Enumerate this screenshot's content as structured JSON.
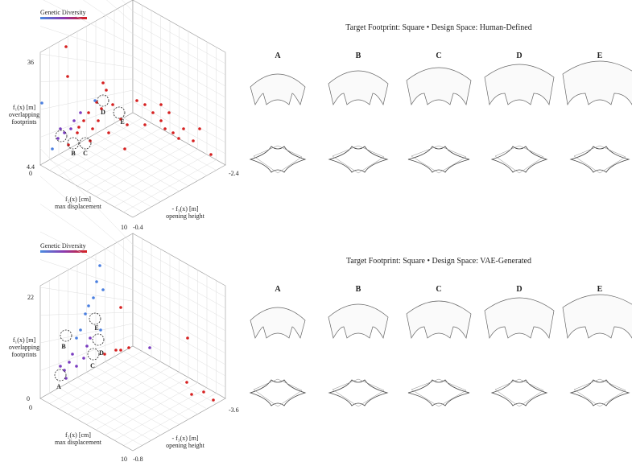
{
  "panels": [
    {
      "legend": "Genetic Diversity",
      "title": "Target Footprint: Square • Design Space: Human-Defined",
      "columns": [
        "A",
        "B",
        "C",
        "D",
        "E"
      ],
      "axes": {
        "f1": [
          "f₁(x) [m]",
          "overlapping",
          "footprints"
        ],
        "f2": [
          "f₂(x) [cm]",
          "max displacement"
        ],
        "f3": [
          "- f₃(x) [m]",
          "opening height"
        ]
      },
      "ticks": {
        "f1_max": "36",
        "f1_min": "4.4",
        "f2_min": "0",
        "f2_max": "10",
        "f3_min": "-0.4",
        "f3_max": "-2.4"
      },
      "point_labels": [
        "B",
        "C",
        "D",
        "E"
      ]
    },
    {
      "legend": "Genetic Diversity",
      "title": "Target Footprint: Square • Design Space: VAE-Generated",
      "columns": [
        "A",
        "B",
        "C",
        "D",
        "E"
      ],
      "axes": {
        "f1": [
          "f₁(x) [m]",
          "overlapping",
          "footprints"
        ],
        "f2": [
          "f₂(x) [cm]",
          "max displacement"
        ],
        "f3": [
          "- f₃(x) [m]",
          "opening height"
        ]
      },
      "ticks": {
        "f1_max": "22",
        "f1_min": "0",
        "f2_min": "0",
        "f2_max": "10",
        "f3_min": "-0.8",
        "f3_max": "-3.6"
      },
      "point_labels": [
        "A",
        "B",
        "C",
        "D",
        "E"
      ]
    }
  ]
}
